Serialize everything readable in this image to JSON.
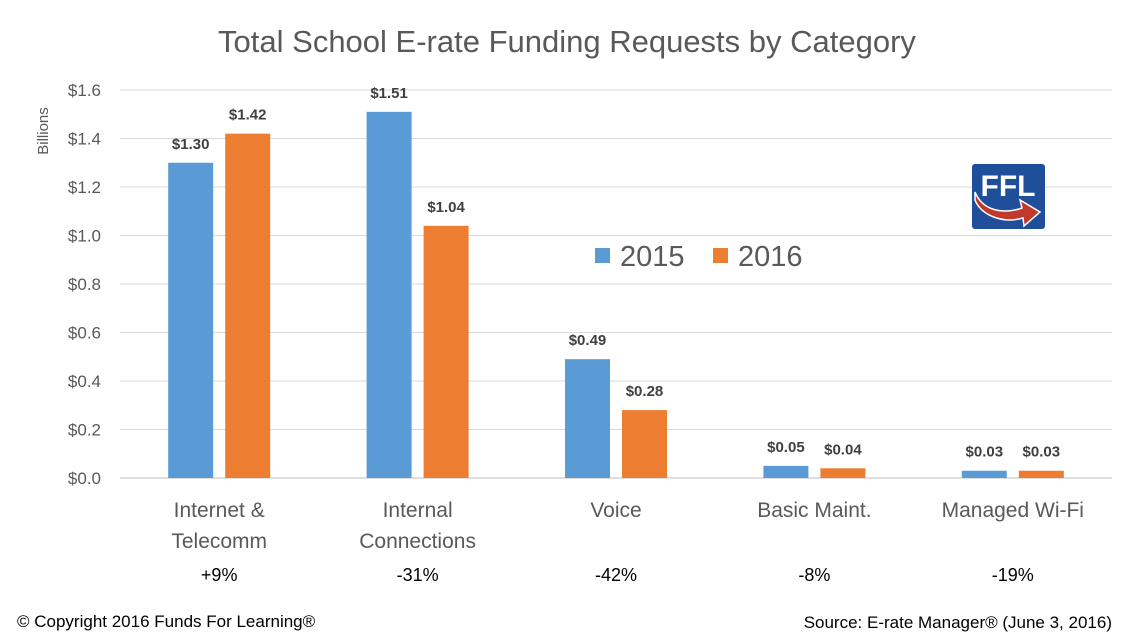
{
  "chart_data": {
    "type": "bar",
    "title": "Total School E-rate Funding Requests by Category",
    "ylabel": "Billions",
    "xlabel": "",
    "ylim": [
      0,
      1.6
    ],
    "yticks": [
      "$0.0",
      "$0.2",
      "$0.4",
      "$0.6",
      "$0.8",
      "$1.0",
      "$1.2",
      "$1.4",
      "$1.6"
    ],
    "grid": true,
    "legend_position": "center",
    "categories": [
      "Internet & Telecomm",
      "Internal Connections",
      "Voice",
      "Basic Maint.",
      "Managed Wi-Fi"
    ],
    "category_lines": [
      [
        "Internet &",
        "Telecomm"
      ],
      [
        "Internal",
        "Connections"
      ],
      [
        "Voice"
      ],
      [
        "Basic Maint."
      ],
      [
        "Managed Wi-Fi"
      ]
    ],
    "changes": [
      "+9%",
      "-31%",
      "-42%",
      "-8%",
      "-19%"
    ],
    "series": [
      {
        "name": "2015",
        "color": "#5b9bd5",
        "values": [
          1.3,
          1.51,
          0.49,
          0.05,
          0.03
        ],
        "labels": [
          "$1.30",
          "$1.51",
          "$0.49",
          "$0.05",
          "$0.03"
        ]
      },
      {
        "name": "2016",
        "color": "#ed7d31",
        "values": [
          1.42,
          1.04,
          0.28,
          0.04,
          0.03
        ],
        "labels": [
          "$1.42",
          "$1.04",
          "$0.28",
          "$0.04",
          "$0.03"
        ]
      }
    ]
  },
  "logo": {
    "text": "FFL",
    "color": "#1f4e9a",
    "arrow_color": "#c0392b"
  },
  "footer": {
    "copyright": "© Copyright 2016 Funds For Learning®",
    "source": "Source: E-rate Manager® (June 3, 2016)"
  }
}
